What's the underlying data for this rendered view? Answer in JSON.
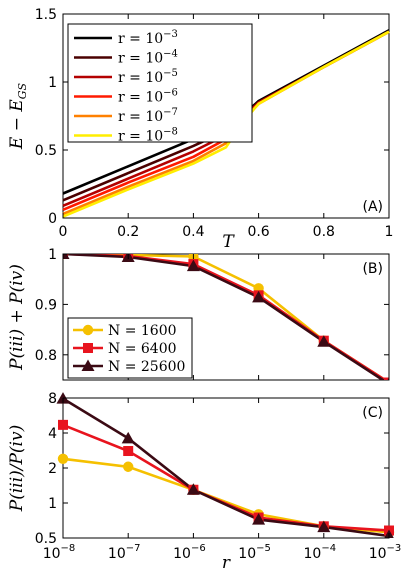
{
  "chart_data": [
    {
      "panel": "(A)",
      "type": "line",
      "xlabel": "T",
      "ylabel": "E − E_GS",
      "xlim": [
        0,
        1
      ],
      "ylim": [
        0,
        1.5
      ],
      "xticks": [
        "0",
        "0.2",
        "0.4",
        "0.6",
        "0.8",
        "1"
      ],
      "yticks": [
        "0",
        "0.5",
        "1",
        "1.5"
      ],
      "legend_position": "top-left",
      "series": [
        {
          "name": "r = 10^-3",
          "label_base": "r = 10",
          "label_exp": "−3",
          "color": "#000000",
          "x": [
            0,
            0.2,
            0.4,
            0.5,
            0.55,
            0.6,
            0.8,
            1.0
          ],
          "y": [
            0.18,
            0.38,
            0.58,
            0.68,
            0.75,
            0.86,
            1.12,
            1.38
          ]
        },
        {
          "name": "r = 10^-4",
          "label_base": "r = 10",
          "label_exp": "−4",
          "color": "#4a0000",
          "x": [
            0,
            0.2,
            0.4,
            0.5,
            0.55,
            0.6,
            0.8,
            1.0
          ],
          "y": [
            0.13,
            0.33,
            0.53,
            0.64,
            0.74,
            0.85,
            1.11,
            1.37
          ]
        },
        {
          "name": "r = 10^-5",
          "label_base": "r = 10",
          "label_exp": "−5",
          "color": "#b40000",
          "x": [
            0,
            0.2,
            0.4,
            0.5,
            0.55,
            0.6,
            0.8,
            1.0
          ],
          "y": [
            0.09,
            0.29,
            0.49,
            0.61,
            0.73,
            0.85,
            1.11,
            1.37
          ]
        },
        {
          "name": "r = 10^-6",
          "label_base": "r = 10",
          "label_exp": "−6",
          "color": "#ff1a00",
          "x": [
            0,
            0.2,
            0.4,
            0.5,
            0.55,
            0.6,
            0.8,
            1.0
          ],
          "y": [
            0.06,
            0.26,
            0.45,
            0.58,
            0.72,
            0.84,
            1.11,
            1.37
          ]
        },
        {
          "name": "r = 10^-7",
          "label_base": "r = 10",
          "label_exp": "−7",
          "color": "#ff8000",
          "x": [
            0,
            0.2,
            0.4,
            0.5,
            0.55,
            0.6,
            0.8,
            1.0
          ],
          "y": [
            0.03,
            0.23,
            0.42,
            0.55,
            0.71,
            0.84,
            1.11,
            1.37
          ]
        },
        {
          "name": "r = 10^-8",
          "label_base": "r = 10",
          "label_exp": "−8",
          "color": "#ffee00",
          "x": [
            0,
            0.2,
            0.4,
            0.5,
            0.55,
            0.6,
            0.8,
            1.0
          ],
          "y": [
            0.01,
            0.21,
            0.4,
            0.52,
            0.7,
            0.84,
            1.11,
            1.37
          ]
        }
      ]
    },
    {
      "panel": "(B)",
      "type": "line",
      "xlabel": "",
      "ylabel": "P(iii) + P(iv)",
      "x_scale": "log",
      "xlim": [
        1e-08,
        0.001
      ],
      "ylim": [
        0.75,
        1.0
      ],
      "yticks": [
        "0.8",
        "0.9",
        "1"
      ],
      "legend_position": "bottom-left",
      "x": [
        1e-08,
        1e-07,
        1e-06,
        1e-05,
        0.0001,
        0.001
      ],
      "series": [
        {
          "name": "N = 1600",
          "label_base": "N = 1600",
          "color": "#f5c000",
          "marker": "circle",
          "y": [
            1.0,
            0.998,
            0.995,
            0.932,
            0.828,
            0.745
          ]
        },
        {
          "name": "N = 6400",
          "label_base": "N = 6400",
          "color": "#e8141e",
          "marker": "square",
          "y": [
            1.0,
            0.996,
            0.98,
            0.918,
            0.828,
            0.745
          ]
        },
        {
          "name": "N = 25600",
          "label_base": "N = 25600",
          "color": "#3b0a14",
          "marker": "triangle",
          "y": [
            1.0,
            0.994,
            0.976,
            0.914,
            0.826,
            0.742
          ]
        }
      ]
    },
    {
      "panel": "(C)",
      "type": "line",
      "xlabel": "r",
      "ylabel": "P(iii)/P(iv)",
      "x_scale": "log",
      "y_scale": "log",
      "xlim": [
        1e-08,
        0.001
      ],
      "ylim": [
        0.5,
        8
      ],
      "xticks": [
        "10^-8",
        "10^-7",
        "10^-6",
        "10^-5",
        "10^-4",
        "10^-3"
      ],
      "xtick_exps": [
        "−8",
        "−7",
        "−6",
        "−5",
        "−4",
        "−3"
      ],
      "yticks": [
        "0.5",
        "1",
        "2",
        "4",
        "8"
      ],
      "x": [
        1e-08,
        1e-07,
        1e-06,
        1e-05,
        0.0001,
        0.001
      ],
      "series": [
        {
          "name": "N = 1600",
          "color": "#f5c000",
          "marker": "circle",
          "y": [
            2.4,
            2.05,
            1.3,
            0.8,
            0.63,
            0.56
          ]
        },
        {
          "name": "N = 6400",
          "color": "#e8141e",
          "marker": "square",
          "y": [
            4.7,
            2.8,
            1.3,
            0.75,
            0.63,
            0.58
          ]
        },
        {
          "name": "N = 25600",
          "color": "#3b0a14",
          "marker": "triangle",
          "y": [
            7.9,
            3.6,
            1.3,
            0.72,
            0.62,
            0.52
          ]
        }
      ]
    }
  ]
}
